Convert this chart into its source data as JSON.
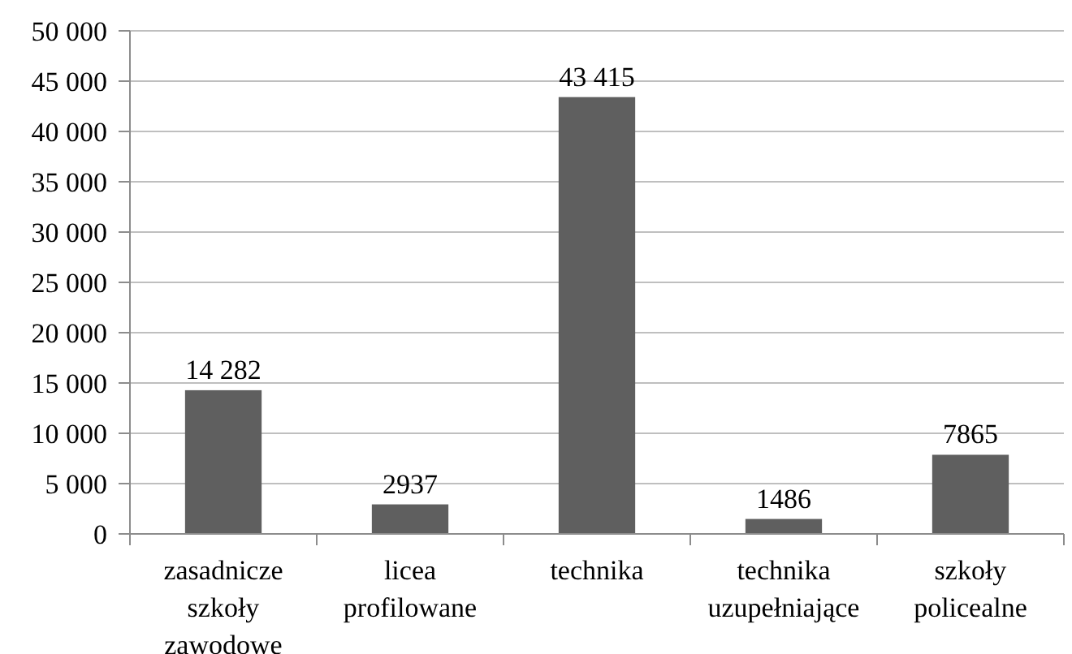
{
  "chart_data": {
    "type": "bar",
    "categories": [
      "zasadnicze szkoły zawodowe",
      "licea profilowane",
      "technika",
      "technika uzupełniające",
      "szkoły policealne"
    ],
    "values": [
      14282,
      2937,
      43415,
      1486,
      7865
    ],
    "color": "#5f5f5f",
    "value_labels": [
      "14 282",
      "2937",
      "43 415",
      "1486",
      "7865"
    ],
    "ylim": [
      0,
      50000
    ],
    "yticks": [
      0,
      {
        "value": 5000,
        "label": "5 000"
      },
      {
        "value": 10000,
        "label": "10 000"
      },
      {
        "value": 15000,
        "label": "15 000"
      },
      {
        "value": 20000,
        "label": "20 000"
      },
      {
        "value": 25000,
        "label": "25 000"
      },
      {
        "value": 30000,
        "label": "30 000"
      },
      {
        "value": 35000,
        "label": "35 000"
      },
      {
        "value": 40000,
        "label": "40 000"
      },
      {
        "value": 45000,
        "label": "45 000"
      },
      {
        "value": 50000,
        "label": "50 000"
      }
    ],
    "grid": "y"
  }
}
